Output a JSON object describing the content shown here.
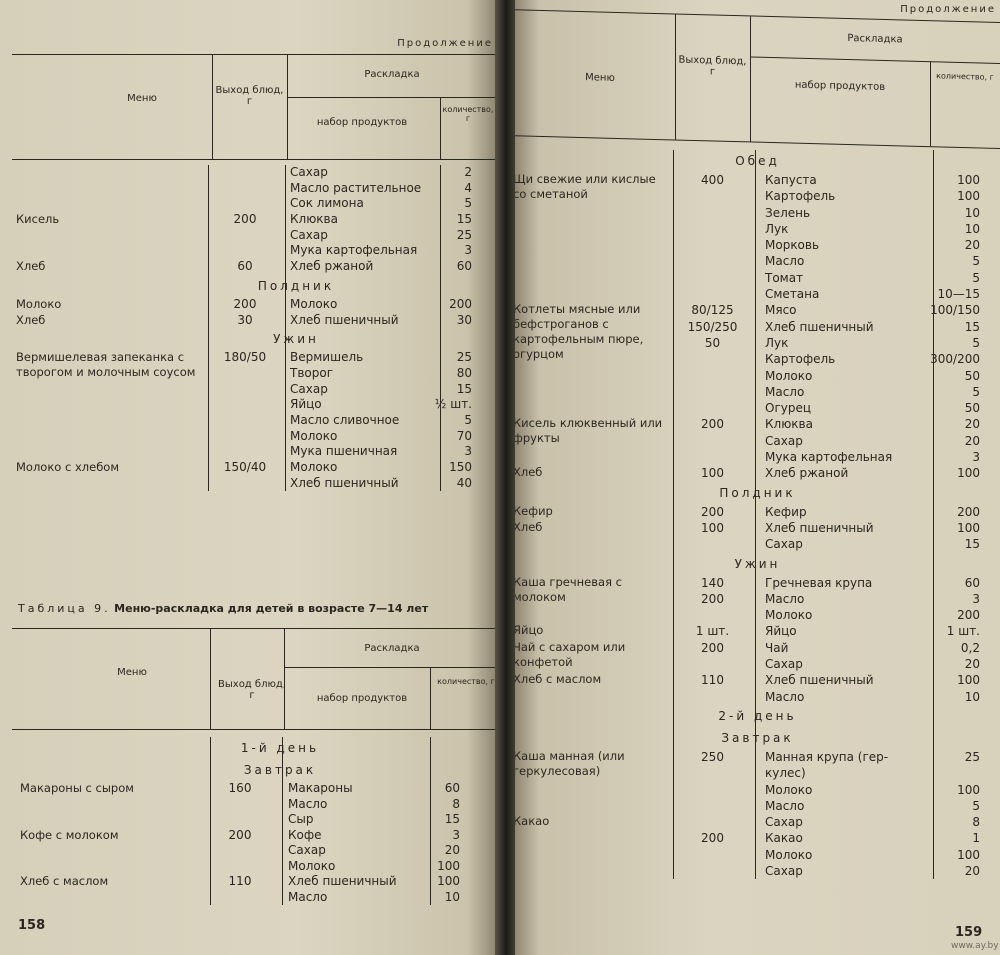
{
  "left_page": {
    "continuation": "Продолжение",
    "header": {
      "menu": "Меню",
      "yield": "Выход блюд, г",
      "layout": "Раскладка",
      "products": "набор продуктов",
      "qty": "количество, г"
    },
    "rows": [
      {
        "product": "Сахар",
        "qty": "2"
      },
      {
        "product": "Масло растительное",
        "qty": "4"
      },
      {
        "product": "Сок лимона",
        "qty": "5"
      },
      {
        "menu": "Кисель",
        "yield": "200",
        "product": "Клюква",
        "qty": "15"
      },
      {
        "product": "Сахар",
        "qty": "25"
      },
      {
        "product": "Мука картофельная",
        "qty": "3"
      },
      {
        "menu": "Хлеб",
        "yield": "60",
        "product": "Хлеб ржаной",
        "qty": "60"
      },
      {
        "section": "Полдник"
      },
      {
        "menu": "Молоко",
        "yield": "200",
        "product": "Молоко",
        "qty": "200"
      },
      {
        "menu": "Хлеб",
        "yield": "30",
        "product": "Хлеб пшеничный",
        "qty": "30"
      },
      {
        "section": "Ужин"
      },
      {
        "menu": "Вермишелевая запеканка с творогом и молочным соусом",
        "yield": "180/50",
        "product": "Вермишель",
        "qty": "25"
      },
      {
        "product": "Творог",
        "qty": "80"
      },
      {
        "product": "Сахар",
        "qty": "15"
      },
      {
        "product": "Яйцо",
        "qty": "½ шт."
      },
      {
        "product": "Масло сливочное",
        "qty": "5"
      },
      {
        "product": "Молоко",
        "qty": "70"
      },
      {
        "product": "Мука пшеничная",
        "qty": "3"
      },
      {
        "menu": "Молоко с хлебом",
        "yield": "150/40",
        "product": "Молоко",
        "qty": "150"
      },
      {
        "product": "Хлеб пшеничный",
        "qty": "40"
      }
    ],
    "table9": {
      "label": "Таблица 9.",
      "title": "Меню-раскладка для детей в возрасте 7—14 лет",
      "header": {
        "menu": "Меню",
        "yield": "Выход блюд, г",
        "layout": "Раскладка",
        "products": "набор продуктов",
        "qty": "количество, г"
      },
      "rows": [
        {
          "section": "1-й день"
        },
        {
          "section": "Завтрак"
        },
        {
          "menu": "Макароны с сыром",
          "yield": "160",
          "product": "Макароны",
          "qty": "60"
        },
        {
          "product": "Масло",
          "qty": "8"
        },
        {
          "product": "Сыр",
          "qty": "15"
        },
        {
          "menu": "Кофе с молоком",
          "yield": "200",
          "product": "Кофе",
          "qty": "3"
        },
        {
          "product": "Сахар",
          "qty": "20"
        },
        {
          "product": "Молоко",
          "qty": "100"
        },
        {
          "menu": "Хлеб с маслом",
          "yield": "110",
          "product": "Хлеб пшеничный",
          "qty": "100"
        },
        {
          "product": "Масло",
          "qty": "10"
        }
      ]
    },
    "page_number": "158"
  },
  "right_page": {
    "continuation": "Продолжение",
    "header": {
      "menu": "Меню",
      "yield": "Выход блюд, г",
      "layout": "Раскладка",
      "products": "набор продуктов",
      "qty": "количество, г"
    },
    "rows": [
      {
        "section": "Обед"
      },
      {
        "menu": "Щи свежие или кислые со сметаной",
        "yield": "400",
        "product": "Капуста",
        "qty": "100"
      },
      {
        "product": "Картофель",
        "qty": "100"
      },
      {
        "product": "Зелень",
        "qty": "10"
      },
      {
        "product": "Лук",
        "qty": "10"
      },
      {
        "product": "Морковь",
        "qty": "20"
      },
      {
        "product": "Масло",
        "qty": "5"
      },
      {
        "product": "Томат",
        "qty": "5"
      },
      {
        "product": "Сметана",
        "qty": "10—15"
      },
      {
        "menu": "Котлеты мясные или бефстроганов с картофельным пюре, огурцом",
        "yield": "80/125",
        "product": "Мясо",
        "qty": "100/150"
      },
      {
        "yield": "150/250",
        "product": "Хлеб пшеничный",
        "qty": "15"
      },
      {
        "yield": "50",
        "product": "Лук",
        "qty": "5"
      },
      {
        "product": "Картофель",
        "qty": "300/200"
      },
      {
        "product": "Молоко",
        "qty": "50"
      },
      {
        "product": "Масло",
        "qty": "5"
      },
      {
        "product": "Огурец",
        "qty": "50"
      },
      {
        "menu": "Кисель клюквенный или фрукты",
        "yield": "200",
        "product": "Клюква",
        "qty": "20"
      },
      {
        "product": "Сахар",
        "qty": "20"
      },
      {
        "product": "Мука картофельная",
        "qty": "3"
      },
      {
        "menu": "Хлеб",
        "yield": "100",
        "product": "Хлеб ржаной",
        "qty": "100"
      },
      {
        "section": "Полдник"
      },
      {
        "menu": "Кефир",
        "yield": "200",
        "product": "Кефир",
        "qty": "200"
      },
      {
        "menu": "Хлеб",
        "yield": "100",
        "product": "Хлеб пшеничный",
        "qty": "100"
      },
      {
        "product": "Сахар",
        "qty": "15"
      },
      {
        "section": "Ужин"
      },
      {
        "menu": "Каша гречневая с молоком",
        "yield": "140",
        "product": "Гречневая крупа",
        "qty": "60"
      },
      {
        "yield": "200",
        "product": "Масло",
        "qty": "3"
      },
      {
        "product": "Молоко",
        "qty": "200"
      },
      {
        "menu": "Яйцо",
        "yield": "1 шт.",
        "product": "Яйцо",
        "qty": "1 шт."
      },
      {
        "menu": "Чай с сахаром или конфетой",
        "yield": "200",
        "product": "Чай",
        "qty": "0,2"
      },
      {
        "product": "Сахар",
        "qty": "20"
      },
      {
        "menu": "Хлеб с маслом",
        "yield": "110",
        "product": "Хлеб пшеничный",
        "qty": "100"
      },
      {
        "product": "Масло",
        "qty": "10"
      },
      {
        "section": "2-й день"
      },
      {
        "section": "Завтрак"
      },
      {
        "menu": "Каша манная (или геркулесовая)",
        "yield": "250",
        "product": "Манная крупа (гер-",
        "qty": "25"
      },
      {
        "product": "кулес)"
      },
      {
        "product": "Молоко",
        "qty": "100"
      },
      {
        "product": "Масло",
        "qty": "5"
      },
      {
        "menu": "Какао",
        "product": "Сахар",
        "qty": "8"
      },
      {
        "yield": "200",
        "product": "Какао",
        "qty": "1"
      },
      {
        "product": "Молоко",
        "qty": "100"
      },
      {
        "product": "Сахар",
        "qty": "20"
      }
    ],
    "page_number": "159",
    "watermark": "www.ay.by"
  }
}
